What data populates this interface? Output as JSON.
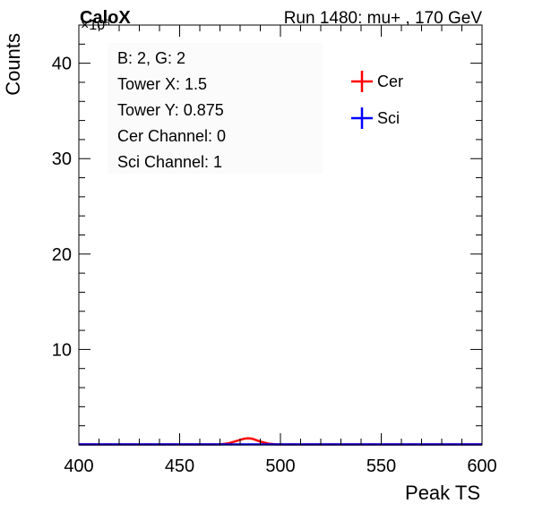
{
  "chart_data": {
    "type": "line",
    "title_left": "CaloX",
    "title_right": "Run 1480: mu+ , 170 GeV",
    "xlabel": "Peak TS",
    "ylabel": "Counts",
    "y_multiplier": "×10³",
    "xlim": [
      400,
      600
    ],
    "ylim": [
      0,
      44
    ],
    "x_ticks": [
      400,
      450,
      500,
      550,
      600
    ],
    "y_ticks": [
      10,
      20,
      30,
      40
    ],
    "info_lines": [
      "B: 2, G: 2",
      "Tower X: 1.5",
      "Tower Y: 0.875",
      "Cer Channel: 0",
      "Sci Channel: 1"
    ],
    "series": [
      {
        "name": "Cer",
        "color": "#ff0000",
        "x": [
          400,
          470,
          474,
          478,
          482,
          484,
          486,
          490,
          494,
          498,
          600
        ],
        "y": [
          0,
          0,
          0.1,
          0.35,
          0.6,
          0.65,
          0.6,
          0.3,
          0.08,
          0,
          0
        ]
      },
      {
        "name": "Sci",
        "color": "#0000ff",
        "x": [
          400,
          600
        ],
        "y": [
          0,
          0
        ]
      }
    ]
  }
}
